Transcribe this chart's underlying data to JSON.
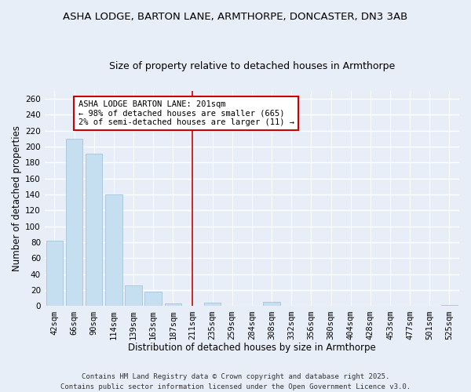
{
  "title": "ASHA LODGE, BARTON LANE, ARMTHORPE, DONCASTER, DN3 3AB",
  "subtitle": "Size of property relative to detached houses in Armthorpe",
  "xlabel": "Distribution of detached houses by size in Armthorpe",
  "ylabel": "Number of detached properties",
  "categories": [
    "42sqm",
    "66sqm",
    "90sqm",
    "114sqm",
    "139sqm",
    "163sqm",
    "187sqm",
    "211sqm",
    "235sqm",
    "259sqm",
    "284sqm",
    "308sqm",
    "332sqm",
    "356sqm",
    "380sqm",
    "404sqm",
    "428sqm",
    "453sqm",
    "477sqm",
    "501sqm",
    "525sqm"
  ],
  "values": [
    82,
    210,
    191,
    140,
    26,
    18,
    3,
    0,
    4,
    0,
    0,
    5,
    0,
    0,
    0,
    0,
    0,
    0,
    0,
    0,
    1
  ],
  "bar_color": "#c5dff0",
  "bar_edge_color": "#9bbdd4",
  "highlight_index": 7,
  "highlight_line_color": "#cc0000",
  "ylim": [
    0,
    270
  ],
  "yticks": [
    0,
    20,
    40,
    60,
    80,
    100,
    120,
    140,
    160,
    180,
    200,
    220,
    240,
    260
  ],
  "annotation_title": "ASHA LODGE BARTON LANE: 201sqm",
  "annotation_line1": "← 98% of detached houses are smaller (665)",
  "annotation_line2": "2% of semi-detached houses are larger (11) →",
  "annotation_box_color": "#ffffff",
  "annotation_box_edge": "#cc0000",
  "footer1": "Contains HM Land Registry data © Crown copyright and database right 2025.",
  "footer2": "Contains public sector information licensed under the Open Government Licence v3.0.",
  "bg_color": "#e8eef8",
  "grid_color": "#ffffff",
  "title_fontsize": 9.5,
  "subtitle_fontsize": 9,
  "axis_label_fontsize": 8.5,
  "tick_fontsize": 7.5,
  "footer_fontsize": 6.5
}
